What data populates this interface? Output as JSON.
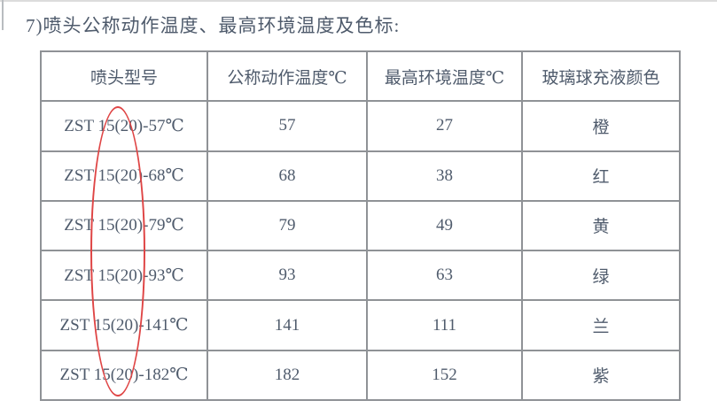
{
  "page": {
    "heading": "7)喷头公称动作温度、最高环境温度及色标:"
  },
  "table": {
    "headers": [
      "喷头型号",
      "公称动作温度℃",
      "最高环境温度℃",
      "玻璃球充液颜色"
    ],
    "rows": [
      [
        "ZST 15(20)-57℃",
        "57",
        "27",
        "橙"
      ],
      [
        "ZST 15(20)-68℃",
        "68",
        "38",
        "红"
      ],
      [
        "ZST 15(20)-79℃",
        "79",
        "49",
        "黄"
      ],
      [
        "ZST 15(20)-93℃",
        "93",
        "63",
        "绿"
      ],
      [
        "ZST 15(20)-141℃",
        "141",
        "111",
        "兰"
      ],
      [
        "ZST 15(20)-182℃",
        "182",
        "152",
        "紫"
      ]
    ]
  },
  "annotation": {
    "type": "ellipse-highlight",
    "target": "15(20) portion of model names",
    "color": "#df4545"
  },
  "colors": {
    "text": "#4f5b6c",
    "table_border": "#8f9296",
    "background": "#ffffff"
  }
}
